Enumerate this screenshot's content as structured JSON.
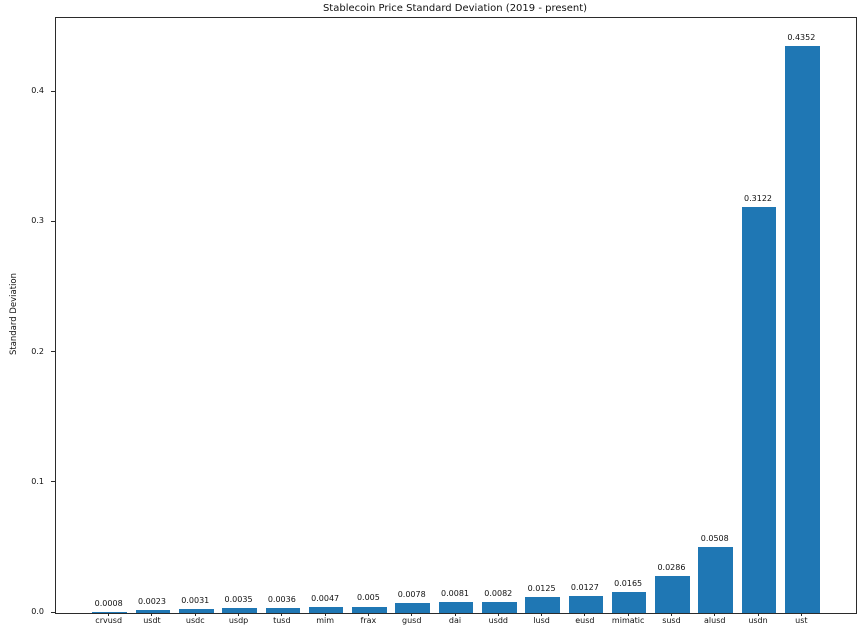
{
  "figure": {
    "title": "Stablecoin Price Standard Deviation (2019 - present)",
    "ylabel": "Standard Deviation"
  },
  "chart_data": {
    "type": "bar",
    "title": "Stablecoin Price Standard Deviation (2019 - present)",
    "xlabel": "",
    "ylabel": "Standard Deviation",
    "categories": [
      "crvusd",
      "usdt",
      "usdc",
      "usdp",
      "tusd",
      "mim",
      "frax",
      "gusd",
      "dai",
      "usdd",
      "lusd",
      "eusd",
      "mimatic",
      "susd",
      "alusd",
      "usdn",
      "ust"
    ],
    "values": [
      0.0008,
      0.0023,
      0.0031,
      0.0035,
      0.0036,
      0.0047,
      0.005,
      0.0078,
      0.0081,
      0.0082,
      0.0125,
      0.0127,
      0.0165,
      0.0286,
      0.0508,
      0.3122,
      0.4352
    ],
    "value_labels": [
      "0.0008",
      "0.0023",
      "0.0031",
      "0.0035",
      "0.0036",
      "0.0047",
      "0.005",
      "0.0078",
      "0.0081",
      "0.0082",
      "0.0125",
      "0.0127",
      "0.0165",
      "0.0286",
      "0.0508",
      "0.3122",
      "0.4352"
    ],
    "ylim": [
      0,
      0.457
    ],
    "yticks": [
      0.0,
      0.1,
      0.2,
      0.3,
      0.4
    ],
    "ytick_labels": [
      "0.0",
      "0.1",
      "0.2",
      "0.3",
      "0.4"
    ],
    "grid": false,
    "legend": "none",
    "bar_color": "#1f77b4"
  }
}
